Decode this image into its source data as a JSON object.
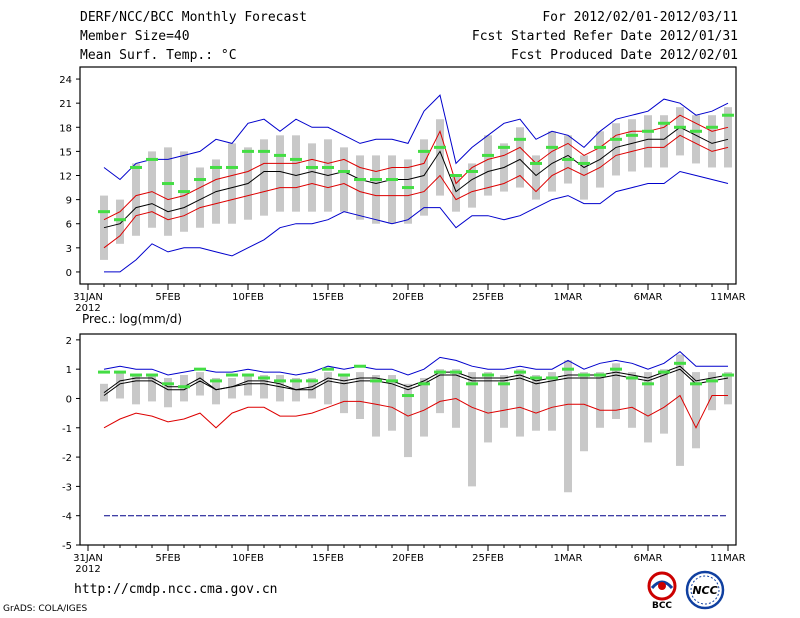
{
  "header": {
    "title": "DERF/NCC/BCC Monthly Forecast",
    "member_size": "Member Size=40",
    "variable": "Mean Surf. Temp.: °C",
    "period": "For 2012/02/01-2012/03/11",
    "refer_date": "Fcst Started Refer Date 2012/01/31",
    "produced_date": "Fcst Produced Date 2012/02/01"
  },
  "footer": {
    "url": "http://cmdp.ncc.cma.gov.cn",
    "grads": "GrADS: COLA/IGES",
    "logo_bcc": "BCC",
    "logo_ncc": "NCC"
  },
  "colors": {
    "envelope": "#0000cc",
    "spread": "#dd0000",
    "mean": "#000000",
    "obs": "#44dd44",
    "box": "#c8c8c8",
    "baseline": "#000088"
  },
  "chart_data": [
    {
      "type": "line",
      "title": "Mean Surf. Temp.: °C",
      "xlabel": "",
      "ylabel": "",
      "ylim": [
        -1.5,
        25.5
      ],
      "yticks": [
        0,
        3,
        6,
        9,
        12,
        15,
        18,
        21,
        24
      ],
      "xticks": [
        {
          "day": 0,
          "label": "31JAN",
          "sub": "2012"
        },
        {
          "day": 5,
          "label": "5FEB"
        },
        {
          "day": 10,
          "label": "10FEB"
        },
        {
          "day": 15,
          "label": "15FEB"
        },
        {
          "day": 20,
          "label": "20FEB"
        },
        {
          "day": 25,
          "label": "25FEB"
        },
        {
          "day": 30,
          "label": "1MAR"
        },
        {
          "day": 35,
          "label": "6MAR"
        },
        {
          "day": 40,
          "label": "11MAR"
        }
      ],
      "days": [
        1,
        2,
        3,
        4,
        5,
        6,
        7,
        8,
        9,
        10,
        11,
        12,
        13,
        14,
        15,
        16,
        17,
        18,
        19,
        20,
        21,
        22,
        23,
        24,
        25,
        26,
        27,
        28,
        29,
        30,
        31,
        32,
        33,
        34,
        35,
        36,
        37,
        38,
        39,
        40
      ],
      "series": [
        {
          "name": "max",
          "values": [
            0,
            0,
            1.5,
            3.5,
            2.5,
            3,
            3,
            2.5,
            2,
            3,
            4,
            5.5,
            6,
            6,
            6.5,
            7.5,
            7,
            6.5,
            6,
            6.5,
            8,
            8,
            5.5,
            7,
            7,
            6.5,
            7,
            8,
            9,
            9.5,
            8.5,
            8.5,
            10,
            10.5,
            11,
            11,
            12.5,
            12,
            11.5,
            11
          ]
        },
        {
          "name": "spread_lo",
          "values": [
            3,
            4.5,
            7,
            7.5,
            6.5,
            7,
            8,
            8.5,
            9,
            9.5,
            10,
            10.5,
            10.5,
            11,
            10.5,
            11,
            10,
            9.5,
            9.5,
            9.5,
            10,
            12,
            9,
            10,
            10.5,
            11,
            12,
            10,
            12,
            13,
            12,
            13,
            14.5,
            15,
            15.5,
            15.5,
            17,
            16,
            15,
            15.5
          ]
        },
        {
          "name": "mean",
          "values": [
            5.5,
            6,
            8,
            8.5,
            7.5,
            8,
            9,
            10,
            10.5,
            11,
            12.5,
            12.5,
            12,
            12.5,
            12,
            12.5,
            11.5,
            11,
            11.5,
            11.5,
            12,
            15,
            10,
            11.5,
            12.5,
            13,
            14,
            12,
            13.5,
            14.5,
            13,
            14,
            15.5,
            16,
            16.5,
            16.5,
            18,
            17,
            16,
            16.5
          ]
        },
        {
          "name": "spread_hi",
          "values": [
            6.5,
            7.5,
            9.5,
            10,
            9,
            9.5,
            10.5,
            11.5,
            12,
            12.5,
            13.5,
            13.5,
            13.5,
            14,
            13.5,
            14,
            13,
            12.5,
            13,
            13,
            13.5,
            17.5,
            11,
            13,
            14,
            14.5,
            15.5,
            13.5,
            15,
            16,
            14.5,
            15.5,
            17,
            17.5,
            17.5,
            18,
            19.5,
            18.5,
            17.5,
            18
          ]
        },
        {
          "name": "min",
          "values": [
            13,
            11.5,
            13.5,
            14,
            14,
            14.5,
            15,
            16.5,
            16,
            18.5,
            19,
            17.5,
            19,
            18,
            18,
            17,
            16,
            16.5,
            16.5,
            16,
            20,
            22,
            13.5,
            15.5,
            17,
            18.5,
            19,
            16.5,
            17.5,
            17,
            15.5,
            17.5,
            19,
            19.5,
            20,
            21.5,
            21,
            19.5,
            20,
            21
          ]
        },
        {
          "name": "observed",
          "values": [
            7.5,
            6.5,
            13,
            14,
            11,
            10,
            11.5,
            13,
            13,
            15,
            15,
            14.5,
            14,
            13,
            13,
            12.5,
            11.5,
            11.5,
            11.5,
            10.5,
            15,
            15.5,
            12,
            12.5,
            14.5,
            15.5,
            16.5,
            13.5,
            15.5,
            14,
            13.5,
            15.5,
            16.5,
            17,
            17.5,
            18.5,
            18,
            17.5,
            18,
            19.5
          ]
        },
        {
          "name": "box_lo",
          "values": [
            1.5,
            3.5,
            4.5,
            5.5,
            4.5,
            5,
            5.5,
            6,
            6,
            6.5,
            7,
            7.5,
            7.5,
            7.5,
            7.5,
            7.5,
            6.5,
            6,
            6,
            6,
            7,
            9.5,
            7.5,
            8,
            9.5,
            10,
            10.5,
            9,
            10,
            11,
            9,
            10.5,
            12,
            12.5,
            13,
            13,
            14.5,
            13.5,
            13,
            13
          ]
        },
        {
          "name": "box_hi",
          "values": [
            9.5,
            9,
            13.5,
            15,
            15.5,
            15,
            13,
            14,
            16,
            15.5,
            16.5,
            17,
            17,
            16,
            16.5,
            15.5,
            14.5,
            14.5,
            14.5,
            14,
            16.5,
            19,
            12,
            13.5,
            17,
            16,
            18,
            14.5,
            17.5,
            17,
            14.5,
            17.5,
            18.5,
            19,
            19.5,
            19.5,
            20.5,
            19.5,
            19.5,
            20.5
          ]
        }
      ]
    },
    {
      "type": "line",
      "title": "Prec.: log(mm/d)",
      "xlabel": "",
      "ylabel": "",
      "ylim": [
        -5,
        2.2
      ],
      "yticks": [
        -5,
        -4,
        -3,
        -2,
        -1,
        0,
        1,
        2
      ],
      "xticks": [
        {
          "day": 0,
          "label": "31JAN",
          "sub": "2012"
        },
        {
          "day": 5,
          "label": "5FEB"
        },
        {
          "day": 10,
          "label": "10FEB"
        },
        {
          "day": 15,
          "label": "15FEB"
        },
        {
          "day": 20,
          "label": "20FEB"
        },
        {
          "day": 25,
          "label": "25FEB"
        },
        {
          "day": 30,
          "label": "1MAR"
        },
        {
          "day": 35,
          "label": "6MAR"
        },
        {
          "day": 40,
          "label": "11MAR"
        }
      ],
      "days": [
        1,
        2,
        3,
        4,
        5,
        6,
        7,
        8,
        9,
        10,
        11,
        12,
        13,
        14,
        15,
        16,
        17,
        18,
        19,
        20,
        21,
        22,
        23,
        24,
        25,
        26,
        27,
        28,
        29,
        30,
        31,
        32,
        33,
        34,
        35,
        36,
        37,
        38,
        39,
        40
      ],
      "baseline": -4,
      "series": [
        {
          "name": "max",
          "values": [
            1,
            1.1,
            1,
            1,
            0.8,
            0.9,
            1,
            0.9,
            0.9,
            1,
            0.9,
            0.9,
            0.8,
            0.9,
            1.1,
            1,
            1.1,
            1,
            1,
            0.8,
            1,
            1.4,
            1.3,
            1.1,
            1,
            1,
            1.1,
            1,
            1,
            1.3,
            1,
            1.2,
            1.3,
            1.2,
            1,
            1.2,
            1.6,
            1.1,
            1.1,
            1.1
          ]
        },
        {
          "name": "mean",
          "values": [
            0.1,
            0.5,
            0.6,
            0.6,
            0.3,
            0.3,
            0.6,
            0.3,
            0.4,
            0.5,
            0.5,
            0.4,
            0.3,
            0.3,
            0.6,
            0.5,
            0.6,
            0.6,
            0.5,
            0.3,
            0.5,
            0.8,
            0.8,
            0.6,
            0.6,
            0.6,
            0.7,
            0.5,
            0.6,
            0.7,
            0.7,
            0.7,
            0.8,
            0.7,
            0.6,
            0.8,
            1,
            0.5,
            0.6,
            0.7
          ]
        },
        {
          "name": "spread_hi",
          "values": [
            0.2,
            0.6,
            0.7,
            0.7,
            0.4,
            0.4,
            0.7,
            0.3,
            0.4,
            0.6,
            0.6,
            0.5,
            0.3,
            0.4,
            0.7,
            0.6,
            0.7,
            0.7,
            0.6,
            0.4,
            0.6,
            0.9,
            0.9,
            0.7,
            0.7,
            0.7,
            0.8,
            0.6,
            0.7,
            0.8,
            0.8,
            0.8,
            0.9,
            0.8,
            0.7,
            0.9,
            1.1,
            0.6,
            0.7,
            0.8
          ]
        },
        {
          "name": "min",
          "values": [
            -1,
            -0.7,
            -0.5,
            -0.6,
            -0.8,
            -0.7,
            -0.5,
            -1,
            -0.5,
            -0.3,
            -0.3,
            -0.6,
            -0.6,
            -0.5,
            -0.3,
            -0.1,
            -0.1,
            -0.2,
            -0.3,
            -0.6,
            -0.4,
            -0.1,
            0,
            -0.3,
            -0.5,
            -0.4,
            -0.3,
            -0.5,
            -0.3,
            -0.2,
            -0.2,
            -0.4,
            -0.4,
            -0.3,
            -0.6,
            -0.3,
            0.1,
            -1,
            0.1,
            0.1
          ]
        },
        {
          "name": "observed",
          "values": [
            0.9,
            0.9,
            0.8,
            0.8,
            0.5,
            0.4,
            1,
            0.6,
            0.8,
            0.8,
            0.7,
            0.6,
            0.6,
            0.6,
            1,
            0.8,
            1.1,
            0.6,
            0.6,
            0.1,
            0.5,
            0.9,
            0.9,
            0.5,
            0.8,
            0.5,
            0.9,
            0.7,
            0.7,
            1,
            0.8,
            0.8,
            1,
            0.7,
            0.5,
            0.9,
            1.2,
            0.5,
            0.6,
            0.8
          ]
        },
        {
          "name": "box_lo",
          "values": [
            -0.1,
            0,
            -0.2,
            -0.1,
            -0.3,
            -0.1,
            0.1,
            -0.2,
            0,
            0.1,
            0,
            -0.1,
            -0.1,
            0,
            -0.2,
            -0.5,
            -0.7,
            -1.3,
            -1.1,
            -2,
            -1.3,
            -0.5,
            -1,
            -3,
            -1.5,
            -1,
            -1.3,
            -1.1,
            -1.1,
            -3.2,
            -1.8,
            -1,
            -0.7,
            -1,
            -1.5,
            -1.2,
            -2.3,
            -1.7,
            -0.4,
            -0.2
          ]
        },
        {
          "name": "box_hi",
          "values": [
            0.5,
            0.9,
            0.8,
            0.8,
            0.7,
            0.8,
            0.9,
            0.7,
            0.7,
            0.8,
            0.8,
            0.8,
            0.7,
            0.7,
            0.9,
            0.8,
            0.9,
            0.8,
            0.8,
            0.5,
            0.7,
            1,
            1,
            0.9,
            0.9,
            0.8,
            1,
            0.8,
            0.9,
            1.3,
            0.9,
            0.9,
            1.2,
            0.9,
            0.9,
            1,
            1.5,
            0.9,
            0.9,
            0.9
          ]
        }
      ]
    }
  ]
}
